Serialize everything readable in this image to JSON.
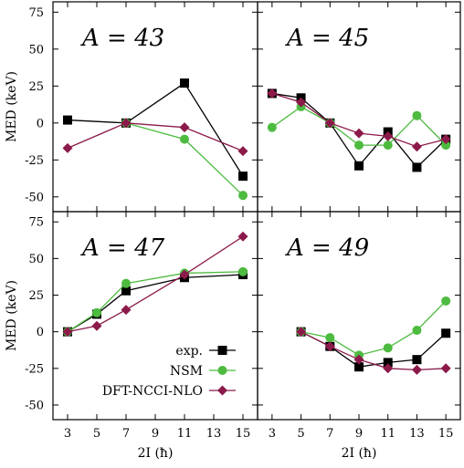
{
  "chart_data": {
    "type": "line",
    "layout": "2x2 grid of panels sharing axes",
    "shared_x": {
      "label": "2I (ħ)",
      "ticks": [
        "3",
        "5",
        "7",
        "9",
        "11",
        "13",
        "15"
      ],
      "xlim": [
        2,
        16
      ]
    },
    "shared_y": {
      "label": "MED (keV)",
      "ticks": [
        "-50",
        "-25",
        "0",
        "25",
        "50",
        "75"
      ],
      "ylim": [
        -60,
        82
      ]
    },
    "legend": {
      "placement": "bottom-left panel, lower-right",
      "entries": [
        "exp.",
        "NSM",
        "DFT-NCCI-NLO"
      ]
    },
    "series_styles": [
      {
        "name": "exp.",
        "color": "#000000",
        "marker": "square"
      },
      {
        "name": "NSM",
        "color": "#4dbb3f",
        "marker": "circle"
      },
      {
        "name": "DFT-NCCI-NLO",
        "color": "#8b1a4a",
        "marker": "diamond"
      }
    ],
    "panels": [
      {
        "label": "A = 43",
        "series": [
          {
            "name": "exp.",
            "x": [
              3,
              7,
              11,
              15
            ],
            "values": [
              2,
              0,
              27,
              -36
            ]
          },
          {
            "name": "NSM",
            "x": [
              7,
              11,
              15
            ],
            "values": [
              0,
              -11,
              -49
            ]
          },
          {
            "name": "DFT-NCCI-NLO",
            "x": [
              3,
              7,
              11,
              15
            ],
            "values": [
              -17,
              0,
              -3,
              -19
            ]
          }
        ]
      },
      {
        "label": "A = 45",
        "series": [
          {
            "name": "exp.",
            "x": [
              3,
              5,
              7,
              9,
              11,
              13,
              15
            ],
            "values": [
              20,
              17,
              0,
              -29,
              -6,
              -30,
              -11
            ]
          },
          {
            "name": "NSM",
            "x": [
              3,
              5,
              7,
              9,
              11,
              13,
              15
            ],
            "values": [
              -3,
              11,
              0,
              -15,
              -15,
              5,
              -15
            ]
          },
          {
            "name": "DFT-NCCI-NLO",
            "x": [
              3,
              5,
              7,
              9,
              11,
              13,
              15
            ],
            "values": [
              20,
              14,
              0,
              -7,
              -9,
              -16,
              -11
            ]
          }
        ]
      },
      {
        "label": "A = 47",
        "series": [
          {
            "name": "exp.",
            "x": [
              3,
              5,
              7,
              11,
              15
            ],
            "values": [
              0,
              12,
              28,
              37,
              39
            ]
          },
          {
            "name": "NSM",
            "x": [
              3,
              5,
              7,
              11,
              15
            ],
            "values": [
              0,
              13,
              33,
              40,
              41
            ]
          },
          {
            "name": "DFT-NCCI-NLO",
            "x": [
              3,
              5,
              7,
              11,
              15
            ],
            "values": [
              0,
              4,
              15,
              39,
              65
            ]
          }
        ]
      },
      {
        "label": "A = 49",
        "series": [
          {
            "name": "exp.",
            "x": [
              5,
              7,
              9,
              11,
              13,
              15
            ],
            "values": [
              0,
              -10,
              -24,
              -21,
              -19,
              -1
            ]
          },
          {
            "name": "NSM",
            "x": [
              5,
              7,
              9,
              11,
              13,
              15
            ],
            "values": [
              0,
              -4,
              -16,
              -11,
              1,
              21
            ]
          },
          {
            "name": "DFT-NCCI-NLO",
            "x": [
              5,
              7,
              9,
              11,
              13,
              15
            ],
            "values": [
              0,
              -10,
              -19,
              -25,
              -26,
              -25
            ]
          }
        ]
      }
    ]
  }
}
